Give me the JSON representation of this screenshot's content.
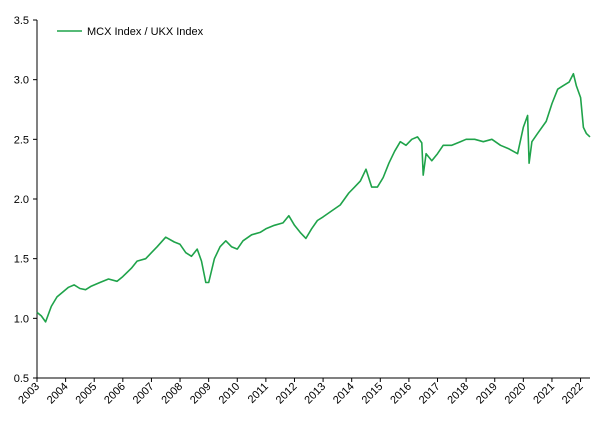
{
  "chart_data": {
    "type": "line",
    "title": "",
    "xlabel": "",
    "ylabel": "",
    "legend": "top-left",
    "grid": false,
    "xlim": [
      2003.0,
      2022.33
    ],
    "ylim": [
      0.5,
      3.5
    ],
    "x_ticks": [
      "2003",
      "2004",
      "2005",
      "2006",
      "2007",
      "2008",
      "2009",
      "2010",
      "2011",
      "2012",
      "2013",
      "2014",
      "2015",
      "2016",
      "2017",
      "2018",
      "2019",
      "2020",
      "2021",
      "2022"
    ],
    "y_ticks": [
      "0.5",
      "1.0",
      "1.5",
      "2.0",
      "2.5",
      "3.0",
      "3.5"
    ],
    "series": [
      {
        "name": "MCX Index / UKX Index",
        "color": "#1fa34a",
        "x": [
          2003.0,
          2003.15,
          2003.3,
          2003.5,
          2003.7,
          2003.9,
          2004.1,
          2004.3,
          2004.5,
          2004.7,
          2004.9,
          2005.2,
          2005.5,
          2005.8,
          2006.0,
          2006.3,
          2006.5,
          2006.8,
          2007.0,
          2007.2,
          2007.5,
          2007.8,
          2008.0,
          2008.2,
          2008.4,
          2008.6,
          2008.75,
          2008.9,
          2009.0,
          2009.2,
          2009.4,
          2009.6,
          2009.8,
          2010.0,
          2010.2,
          2010.5,
          2010.8,
          2011.0,
          2011.3,
          2011.6,
          2011.8,
          2012.0,
          2012.2,
          2012.4,
          2012.6,
          2012.8,
          2013.0,
          2013.3,
          2013.6,
          2013.9,
          2014.1,
          2014.3,
          2014.5,
          2014.7,
          2014.9,
          2015.1,
          2015.3,
          2015.5,
          2015.7,
          2015.9,
          2016.1,
          2016.3,
          2016.45,
          2016.5,
          2016.6,
          2016.8,
          2017.0,
          2017.2,
          2017.5,
          2017.8,
          2018.0,
          2018.3,
          2018.6,
          2018.9,
          2019.2,
          2019.5,
          2019.8,
          2020.0,
          2020.15,
          2020.2,
          2020.3,
          2020.5,
          2020.8,
          2021.0,
          2021.2,
          2021.4,
          2021.6,
          2021.75,
          2021.85,
          2022.0,
          2022.1,
          2022.2,
          2022.33
        ],
        "y": [
          1.05,
          1.02,
          0.97,
          1.1,
          1.18,
          1.22,
          1.26,
          1.28,
          1.25,
          1.24,
          1.27,
          1.3,
          1.33,
          1.31,
          1.35,
          1.42,
          1.48,
          1.5,
          1.55,
          1.6,
          1.68,
          1.64,
          1.62,
          1.55,
          1.52,
          1.58,
          1.48,
          1.3,
          1.3,
          1.5,
          1.6,
          1.65,
          1.6,
          1.58,
          1.65,
          1.7,
          1.72,
          1.75,
          1.78,
          1.8,
          1.86,
          1.78,
          1.72,
          1.67,
          1.75,
          1.82,
          1.85,
          1.9,
          1.95,
          2.05,
          2.1,
          2.15,
          2.25,
          2.1,
          2.1,
          2.18,
          2.3,
          2.4,
          2.48,
          2.45,
          2.5,
          2.52,
          2.47,
          2.2,
          2.38,
          2.32,
          2.38,
          2.45,
          2.45,
          2.48,
          2.5,
          2.5,
          2.48,
          2.5,
          2.45,
          2.42,
          2.38,
          2.6,
          2.7,
          2.3,
          2.48,
          2.55,
          2.65,
          2.8,
          2.92,
          2.95,
          2.98,
          3.05,
          2.95,
          2.85,
          2.6,
          2.55,
          2.52
        ]
      }
    ]
  }
}
